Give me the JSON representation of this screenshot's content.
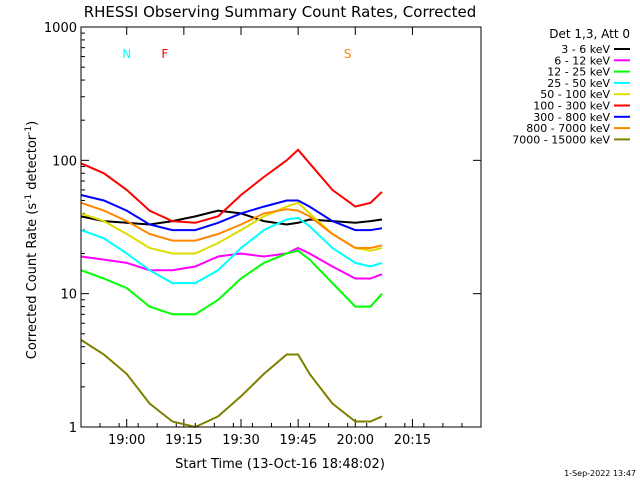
{
  "chart_data": {
    "type": "line",
    "title": "RHESSI Observing Summary Count Rates, Corrected",
    "xlabel": "Start Time (13-Oct-16 18:48:02)",
    "ylabel_main": "Corrected Count Rate (s",
    "ylabel_sup1": "-1",
    "ylabel_mid": " detector",
    "ylabel_sup2": "-1",
    "ylabel_end": ")",
    "yscale": "log",
    "ylim": [
      1,
      1000
    ],
    "xlim_minutes": [
      0,
      105
    ],
    "x_ticks": [
      {
        "label": "19:00",
        "t": 12
      },
      {
        "label": "19:15",
        "t": 27
      },
      {
        "label": "19:30",
        "t": 42
      },
      {
        "label": "19:45",
        "t": 57
      },
      {
        "label": "20:00",
        "t": 72
      },
      {
        "label": "20:15",
        "t": 87
      }
    ],
    "y_ticks": [
      {
        "label": "1",
        "v": 1
      },
      {
        "label": "10",
        "v": 10
      },
      {
        "label": "100",
        "v": 100
      },
      {
        "label": "1000",
        "v": 1000
      }
    ],
    "legend_title": "Det 1,3, Att 0",
    "series": [
      {
        "name": "3 - 6 keV",
        "color": "#000000",
        "t": [
          0,
          6,
          12,
          18,
          24,
          30,
          36,
          42,
          48,
          54,
          57,
          60,
          66,
          72,
          76,
          79
        ],
        "values": [
          38,
          35,
          34,
          33,
          35,
          38,
          42,
          40,
          35,
          33,
          34,
          36,
          35,
          34,
          35,
          36
        ]
      },
      {
        "name": "6 - 12 keV",
        "color": "#ff00ff",
        "t": [
          0,
          6,
          12,
          18,
          24,
          30,
          36,
          42,
          48,
          54,
          57,
          60,
          66,
          72,
          76,
          79
        ],
        "values": [
          19,
          18,
          17,
          15,
          15,
          16,
          19,
          20,
          19,
          20,
          22,
          20,
          16,
          13,
          13,
          14
        ]
      },
      {
        "name": "12 - 25 keV",
        "color": "#00ff00",
        "t": [
          0,
          6,
          12,
          18,
          24,
          30,
          36,
          42,
          48,
          54,
          57,
          60,
          66,
          72,
          76,
          79
        ],
        "values": [
          15,
          13,
          11,
          8,
          7,
          7,
          9,
          13,
          17,
          20,
          21,
          18,
          12,
          8,
          8,
          10
        ]
      },
      {
        "name": "25 - 50 keV",
        "color": "#00ffff",
        "t": [
          0,
          6,
          12,
          18,
          24,
          30,
          36,
          42,
          48,
          54,
          57,
          60,
          66,
          72,
          76,
          79
        ],
        "values": [
          30,
          26,
          20,
          15,
          12,
          12,
          15,
          22,
          30,
          36,
          37,
          32,
          22,
          17,
          16,
          17
        ]
      },
      {
        "name": "50 - 100 keV",
        "color": "#dddd00",
        "t": [
          0,
          6,
          12,
          18,
          24,
          30,
          36,
          42,
          48,
          54,
          57,
          60,
          66,
          72,
          76,
          79
        ],
        "values": [
          40,
          35,
          28,
          22,
          20,
          20,
          24,
          30,
          38,
          45,
          48,
          40,
          28,
          22,
          21,
          22
        ]
      },
      {
        "name": "100 - 300 keV",
        "color": "#ff0000",
        "t": [
          0,
          6,
          12,
          18,
          24,
          30,
          36,
          42,
          48,
          54,
          57,
          60,
          66,
          72,
          76,
          79
        ],
        "values": [
          95,
          80,
          60,
          42,
          35,
          34,
          38,
          55,
          75,
          100,
          120,
          95,
          60,
          45,
          48,
          58
        ]
      },
      {
        "name": "300 - 800 keV",
        "color": "#0000ff",
        "t": [
          0,
          6,
          12,
          18,
          24,
          30,
          36,
          42,
          48,
          54,
          57,
          60,
          66,
          72,
          76,
          79
        ],
        "values": [
          55,
          50,
          42,
          33,
          30,
          30,
          34,
          40,
          45,
          50,
          50,
          45,
          35,
          30,
          30,
          31
        ]
      },
      {
        "name": "800 - 7000 keV",
        "color": "#ff8800",
        "t": [
          0,
          6,
          12,
          18,
          24,
          30,
          36,
          42,
          48,
          54,
          57,
          60,
          66,
          72,
          76,
          79
        ],
        "values": [
          48,
          42,
          35,
          28,
          25,
          25,
          28,
          33,
          40,
          43,
          42,
          38,
          28,
          22,
          22,
          23
        ]
      },
      {
        "name": "7000 - 15000 keV",
        "color": "#808000",
        "t": [
          0,
          6,
          12,
          18,
          24,
          30,
          36,
          42,
          48,
          54,
          57,
          60,
          66,
          72,
          76,
          79
        ],
        "values": [
          4.5,
          3.5,
          2.5,
          1.5,
          1.1,
          1.0,
          1.2,
          1.7,
          2.5,
          3.5,
          3.5,
          2.5,
          1.5,
          1.1,
          1.1,
          1.2
        ]
      }
    ],
    "annotations": [
      {
        "label": "N",
        "t": 12,
        "color": "#00ffff"
      },
      {
        "label": "F",
        "t": 22,
        "color": "#ff0000"
      },
      {
        "label": "S",
        "t": 70,
        "color": "#ff8800"
      }
    ],
    "timestamp": "1-Sep-2022 13:47"
  }
}
